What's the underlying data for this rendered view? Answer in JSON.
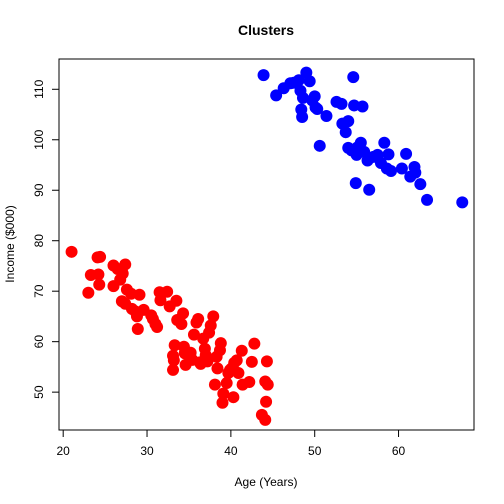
{
  "chart_data": {
    "type": "scatter",
    "title": "Clusters",
    "xlabel": "Age (Years)",
    "ylabel": "Income ($000)",
    "xlim": [
      19.5,
      69
    ],
    "ylim": [
      42.5,
      116
    ],
    "x_ticks": [
      20,
      30,
      40,
      50,
      60
    ],
    "y_ticks": [
      50,
      60,
      70,
      80,
      90,
      100,
      110
    ],
    "grid": false,
    "series": [
      {
        "color": "#ff0000",
        "points": [
          [
            21,
            77.8
          ],
          [
            23,
            69.7
          ],
          [
            23.3,
            73.2
          ],
          [
            24.2,
            73.3
          ],
          [
            24.1,
            76.7
          ],
          [
            24.4,
            76.8
          ],
          [
            24.3,
            71.3
          ],
          [
            26,
            71.0
          ],
          [
            26,
            75.1
          ],
          [
            26.5,
            74.4
          ],
          [
            27,
            74.0
          ],
          [
            27.1,
            73.5
          ],
          [
            27.4,
            75.3
          ],
          [
            26.8,
            72.3
          ],
          [
            27,
            68
          ],
          [
            27.4,
            67.5
          ],
          [
            27.6,
            70.3
          ],
          [
            28.1,
            69.5
          ],
          [
            28.2,
            66.5
          ],
          [
            28.6,
            66
          ],
          [
            28.8,
            65
          ],
          [
            29.1,
            69.3
          ],
          [
            28.9,
            62.5
          ],
          [
            29.6,
            66.3
          ],
          [
            30.5,
            65.2
          ],
          [
            30.7,
            64.5
          ],
          [
            31,
            63.5
          ],
          [
            31.2,
            62.9
          ],
          [
            31.5,
            69.8
          ],
          [
            31.6,
            68.2
          ],
          [
            32.4,
            69.9
          ],
          [
            32.7,
            67
          ],
          [
            33.5,
            68.1
          ],
          [
            33.6,
            64.3
          ],
          [
            33.3,
            59.3
          ],
          [
            33.1,
            57.2
          ],
          [
            33.2,
            56.3
          ],
          [
            33.1,
            54.4
          ],
          [
            34.1,
            63.5
          ],
          [
            34.3,
            65.6
          ],
          [
            34.5,
            57.7
          ],
          [
            34.4,
            59.0
          ],
          [
            34.6,
            55.4
          ],
          [
            35.2,
            57.8
          ],
          [
            35.4,
            56.4
          ],
          [
            35.6,
            61.4
          ],
          [
            35.9,
            63.8
          ],
          [
            36.1,
            64.5
          ],
          [
            36.3,
            55.9
          ],
          [
            36.4,
            55.6
          ],
          [
            36.7,
            60.6
          ],
          [
            36.9,
            58.6
          ],
          [
            37.0,
            57.3
          ],
          [
            37.2,
            56.1
          ],
          [
            37.4,
            61.8
          ],
          [
            37.6,
            63.2
          ],
          [
            37.9,
            65.0
          ],
          [
            38.1,
            51.5
          ],
          [
            38.3,
            57.0
          ],
          [
            38.4,
            54.7
          ],
          [
            38.7,
            58.3
          ],
          [
            38.8,
            59.7
          ],
          [
            39.0,
            47.9
          ],
          [
            39.1,
            49.7
          ],
          [
            39.5,
            51.8
          ],
          [
            39.7,
            53.8
          ],
          [
            39.9,
            54.4
          ],
          [
            40.1,
            54.7
          ],
          [
            40.3,
            49.0
          ],
          [
            40.4,
            55.8
          ],
          [
            40.7,
            56.3
          ],
          [
            40.9,
            53.8
          ],
          [
            41.3,
            58.2
          ],
          [
            41.4,
            51.5
          ],
          [
            42.2,
            52.0
          ],
          [
            42.5,
            56.0
          ],
          [
            42.8,
            59.6
          ],
          [
            43.7,
            45.5
          ],
          [
            44.1,
            44.5
          ],
          [
            44.2,
            48.1
          ],
          [
            44.1,
            52.1
          ],
          [
            44.3,
            56.1
          ],
          [
            44.4,
            51.5
          ]
        ]
      },
      {
        "color": "#0000ff",
        "points": [
          [
            43.9,
            112.8
          ],
          [
            45.4,
            108.8
          ],
          [
            46.3,
            110.2
          ],
          [
            47.1,
            111.2
          ],
          [
            47.5,
            111.3
          ],
          [
            48.1,
            111.8
          ],
          [
            48.3,
            109.7
          ],
          [
            48.6,
            108.3
          ],
          [
            48.4,
            106.0
          ],
          [
            48.5,
            104.5
          ],
          [
            49.0,
            113.3
          ],
          [
            49.4,
            111.6
          ],
          [
            49.7,
            107.8
          ],
          [
            50.0,
            108.6
          ],
          [
            50.1,
            106.4
          ],
          [
            50.3,
            106.1
          ],
          [
            50.6,
            98.8
          ],
          [
            51.4,
            104.7
          ],
          [
            52.6,
            107.5
          ],
          [
            53.2,
            107.1
          ],
          [
            53.3,
            103.2
          ],
          [
            53.7,
            101.5
          ],
          [
            54.0,
            103.7
          ],
          [
            54.0,
            98.4
          ],
          [
            54.4,
            97.9
          ],
          [
            54.6,
            112.4
          ],
          [
            54.7,
            106.8
          ],
          [
            55.0,
            97.0
          ],
          [
            55.1,
            98.5
          ],
          [
            55.5,
            99.4
          ],
          [
            55.7,
            106.6
          ],
          [
            55.9,
            97.6
          ],
          [
            54.9,
            91.4
          ],
          [
            56.3,
            95.9
          ],
          [
            56.5,
            90.1
          ],
          [
            57.0,
            96.6
          ],
          [
            57.5,
            97.0
          ],
          [
            57.9,
            95.4
          ],
          [
            58.3,
            99.4
          ],
          [
            58.6,
            94.3
          ],
          [
            58.8,
            97.1
          ],
          [
            59.1,
            93.8
          ],
          [
            60.4,
            94.3
          ],
          [
            60.9,
            97.2
          ],
          [
            61.4,
            92.7
          ],
          [
            61.9,
            94.6
          ],
          [
            62.0,
            93.5
          ],
          [
            62.6,
            91.2
          ],
          [
            63.4,
            88.1
          ],
          [
            67.6,
            87.6
          ]
        ]
      }
    ]
  }
}
